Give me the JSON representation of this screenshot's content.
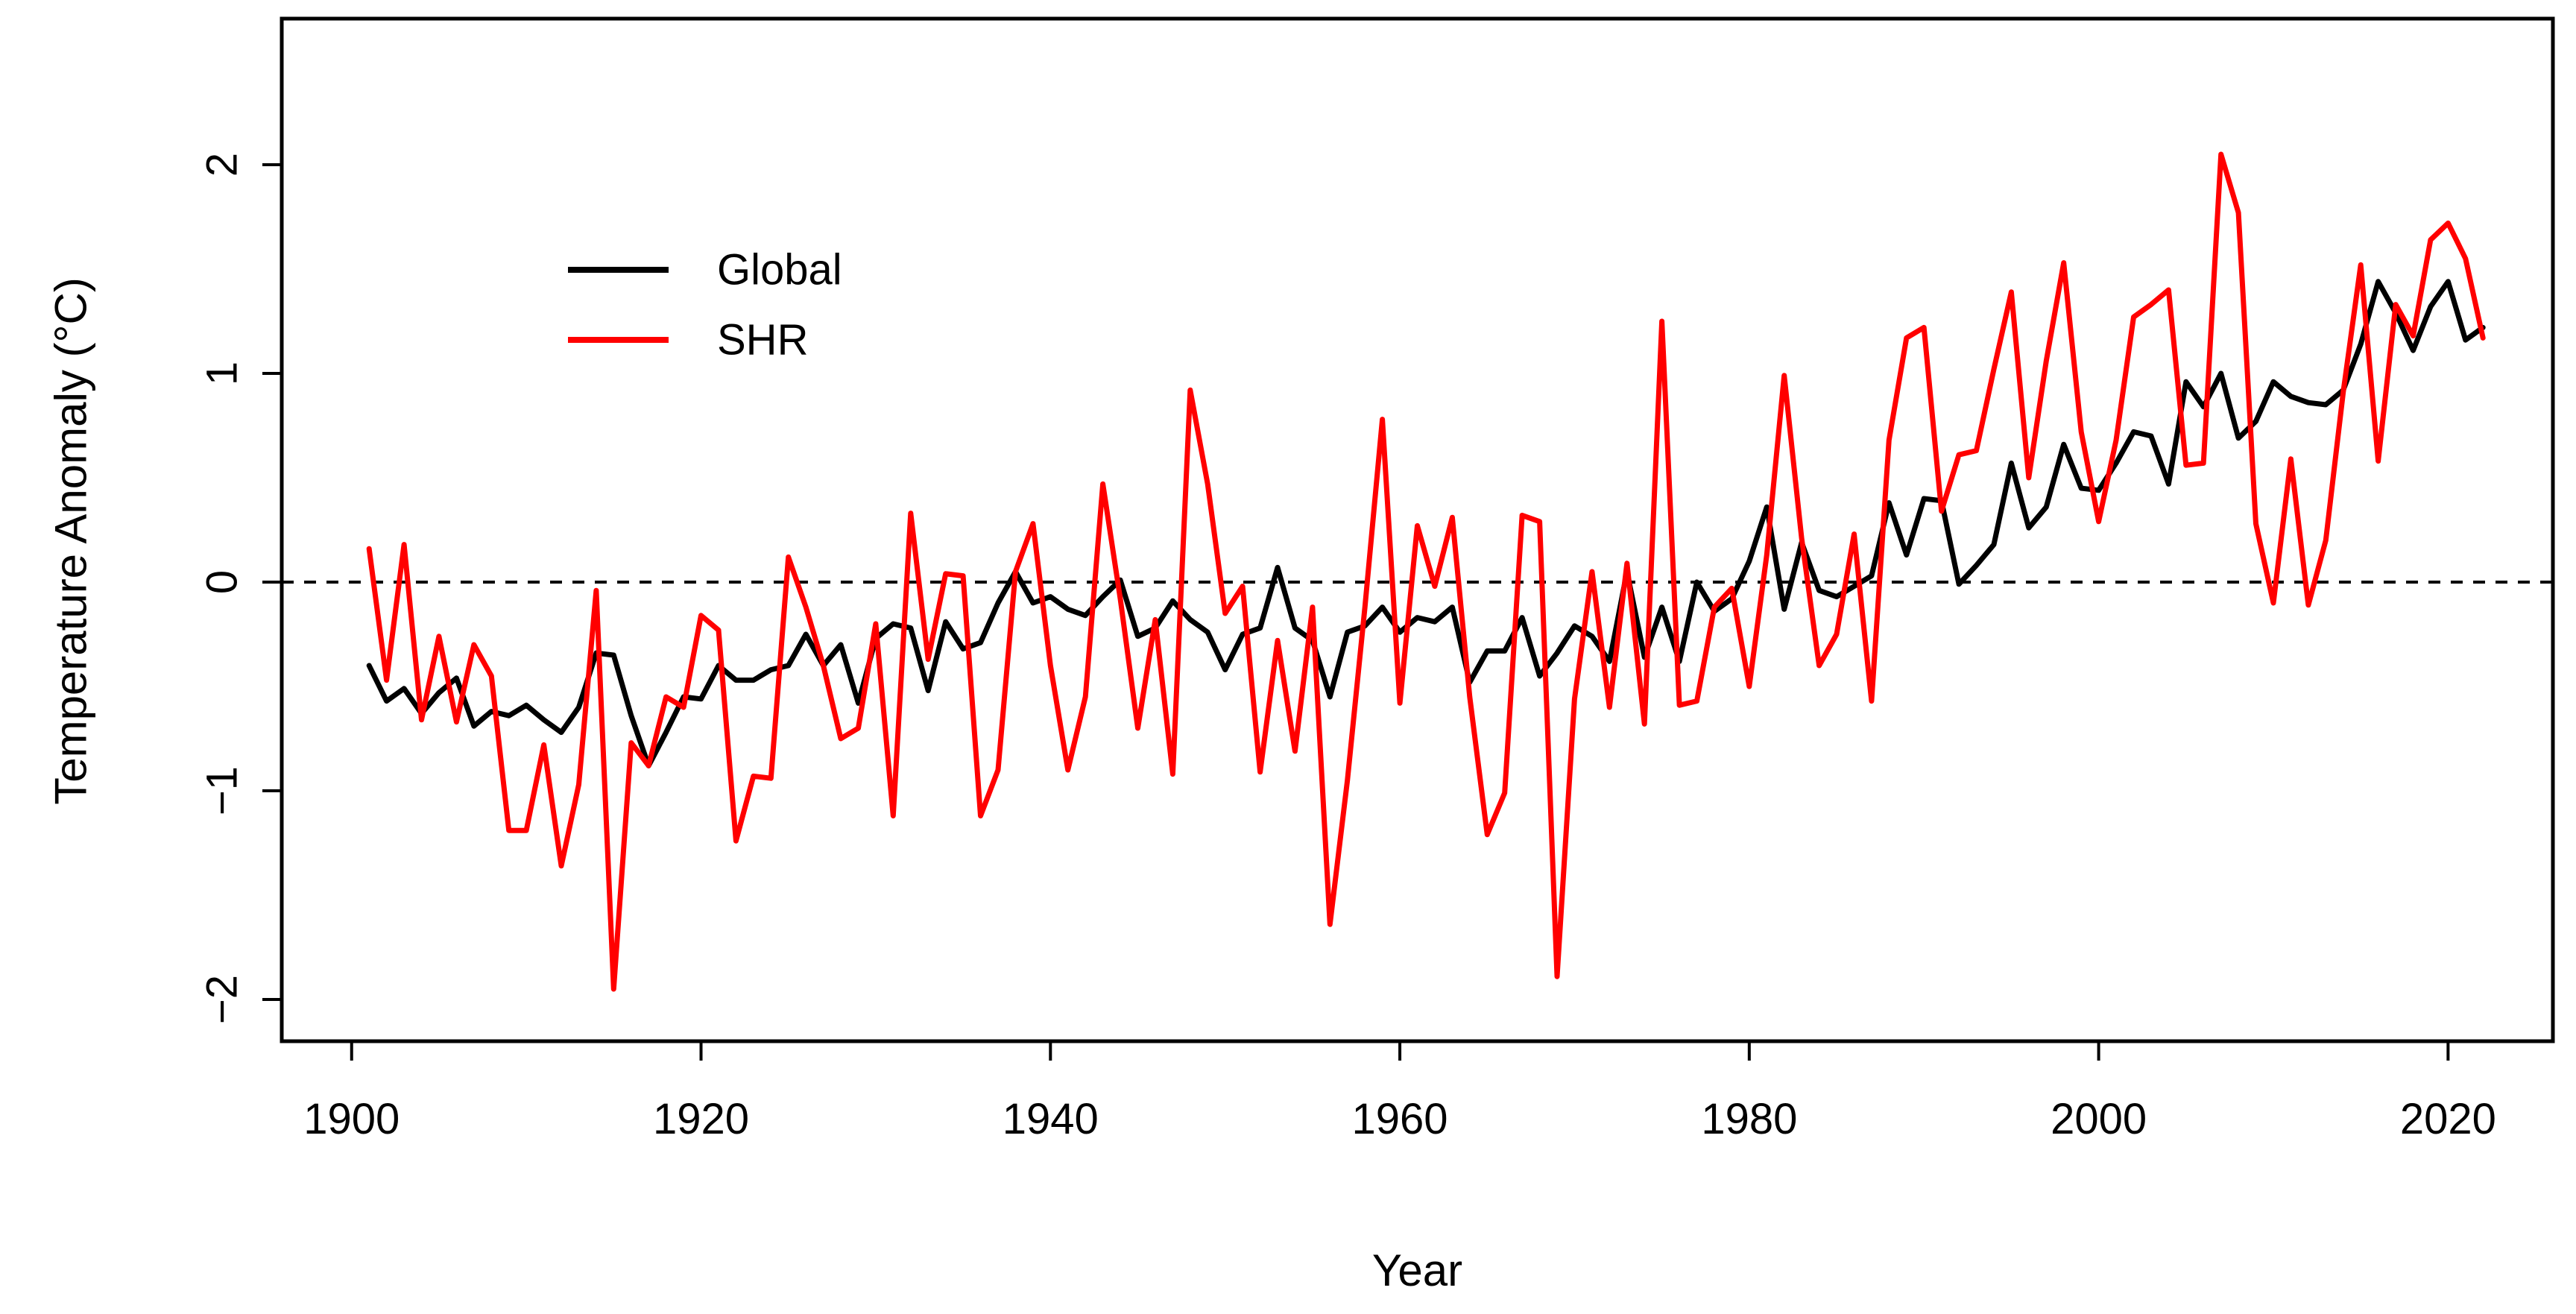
{
  "chart_data": {
    "type": "line",
    "title": "",
    "xlabel": "Year",
    "ylabel": "Temperature Anomaly (°C)",
    "xlim": [
      1896,
      2026
    ],
    "ylim": [
      -2.2,
      2.7
    ],
    "xticks": [
      1900,
      1920,
      1940,
      1960,
      1980,
      2000,
      2020
    ],
    "yticks": [
      -2,
      -1,
      0,
      1,
      2
    ],
    "ytick_labels": [
      "−2",
      "−1",
      "0",
      "1",
      "2"
    ],
    "reference_line": {
      "y": 0,
      "style": "dashed",
      "color": "#000000"
    },
    "legend": {
      "position": "top-left",
      "entries": [
        "Global",
        "SHR"
      ]
    },
    "x": [
      1901,
      1902,
      1903,
      1904,
      1905,
      1906,
      1907,
      1908,
      1909,
      1910,
      1911,
      1912,
      1913,
      1914,
      1915,
      1916,
      1917,
      1918,
      1919,
      1920,
      1921,
      1922,
      1923,
      1924,
      1925,
      1926,
      1927,
      1928,
      1929,
      1930,
      1931,
      1932,
      1933,
      1934,
      1935,
      1936,
      1937,
      1938,
      1939,
      1940,
      1941,
      1942,
      1943,
      1944,
      1945,
      1946,
      1947,
      1948,
      1949,
      1950,
      1951,
      1952,
      1953,
      1954,
      1955,
      1956,
      1957,
      1958,
      1959,
      1960,
      1961,
      1962,
      1963,
      1964,
      1965,
      1966,
      1967,
      1968,
      1969,
      1970,
      1971,
      1972,
      1973,
      1974,
      1975,
      1976,
      1977,
      1978,
      1979,
      1980,
      1981,
      1982,
      1983,
      1984,
      1985,
      1986,
      1987,
      1988,
      1989,
      1990,
      1991,
      1992,
      1993,
      1994,
      1995,
      1996,
      1997,
      1998,
      1999,
      2000,
      2001,
      2002,
      2003,
      2004,
      2005,
      2006,
      2007,
      2008,
      2009,
      2010,
      2011,
      2012,
      2013,
      2014,
      2015,
      2016,
      2017,
      2018,
      2019,
      2020,
      2021,
      2022
    ],
    "series": [
      {
        "name": "Global",
        "color": "#000000",
        "values": [
          -0.4,
          -0.57,
          -0.51,
          -0.63,
          -0.53,
          -0.46,
          -0.69,
          -0.62,
          -0.64,
          -0.59,
          -0.66,
          -0.72,
          -0.6,
          -0.34,
          -0.35,
          -0.64,
          -0.88,
          -0.72,
          -0.55,
          -0.56,
          -0.4,
          -0.47,
          -0.47,
          -0.42,
          -0.4,
          -0.25,
          -0.4,
          -0.3,
          -0.58,
          -0.27,
          -0.2,
          -0.22,
          -0.52,
          -0.19,
          -0.32,
          -0.29,
          -0.1,
          0.05,
          -0.1,
          -0.07,
          -0.13,
          -0.16,
          -0.07,
          0.01,
          -0.26,
          -0.22,
          -0.09,
          -0.18,
          -0.24,
          -0.42,
          -0.25,
          -0.22,
          0.07,
          -0.22,
          -0.28,
          -0.55,
          -0.24,
          -0.21,
          -0.12,
          -0.24,
          -0.17,
          -0.19,
          -0.12,
          -0.48,
          -0.33,
          -0.33,
          -0.17,
          -0.45,
          -0.34,
          -0.21,
          -0.26,
          -0.38,
          0.05,
          -0.36,
          -0.12,
          -0.38,
          0.0,
          -0.14,
          -0.08,
          0.1,
          0.36,
          -0.13,
          0.19,
          -0.04,
          -0.07,
          -0.02,
          0.03,
          0.38,
          0.13,
          0.4,
          0.39,
          -0.01,
          0.08,
          0.18,
          0.57,
          0.26,
          0.36,
          0.66,
          0.45,
          0.44,
          0.57,
          0.72,
          0.7,
          0.47,
          0.96,
          0.84,
          1.0,
          0.69,
          0.77,
          0.96,
          0.89,
          0.86,
          0.85,
          0.92,
          1.14,
          1.44,
          1.29,
          1.11,
          1.32,
          1.44,
          1.16,
          1.22
        ]
      },
      {
        "name": "SHR",
        "color": "#ff0000",
        "values": [
          0.16,
          -0.47,
          0.18,
          -0.66,
          -0.26,
          -0.67,
          -0.3,
          -0.45,
          -1.19,
          -1.19,
          -0.78,
          -1.36,
          -0.97,
          -0.04,
          -1.95,
          -0.77,
          -0.88,
          -0.55,
          -0.6,
          -0.16,
          -0.23,
          -1.24,
          -0.93,
          -0.94,
          0.12,
          -0.12,
          -0.4,
          -0.75,
          -0.7,
          -0.2,
          -1.12,
          0.33,
          -0.37,
          0.04,
          0.03,
          -1.12,
          -0.9,
          0.05,
          0.28,
          -0.4,
          -0.9,
          -0.55,
          0.47,
          -0.08,
          -0.7,
          -0.18,
          -0.92,
          0.92,
          0.47,
          -0.15,
          -0.02,
          -0.91,
          -0.28,
          -0.81,
          -0.12,
          -1.64,
          -0.95,
          -0.12,
          0.78,
          -0.58,
          0.27,
          -0.02,
          0.31,
          -0.55,
          -1.21,
          -1.01,
          0.32,
          0.29,
          -1.89,
          -0.56,
          0.05,
          -0.6,
          0.09,
          -0.68,
          1.25,
          -0.59,
          -0.57,
          -0.12,
          -0.03,
          -0.5,
          0.13,
          0.99,
          0.21,
          -0.4,
          -0.25,
          0.23,
          -0.57,
          0.68,
          1.17,
          1.22,
          0.34,
          0.61,
          0.63,
          1.02,
          1.39,
          0.5,
          1.06,
          1.53,
          0.72,
          0.29,
          0.68,
          1.27,
          1.33,
          1.4,
          0.56,
          0.57,
          2.05,
          1.77,
          0.28,
          -0.1,
          0.59,
          -0.11,
          0.2,
          0.91,
          1.52,
          0.58,
          1.33,
          1.18,
          1.64,
          1.72,
          1.55,
          1.17
        ]
      }
    ]
  }
}
